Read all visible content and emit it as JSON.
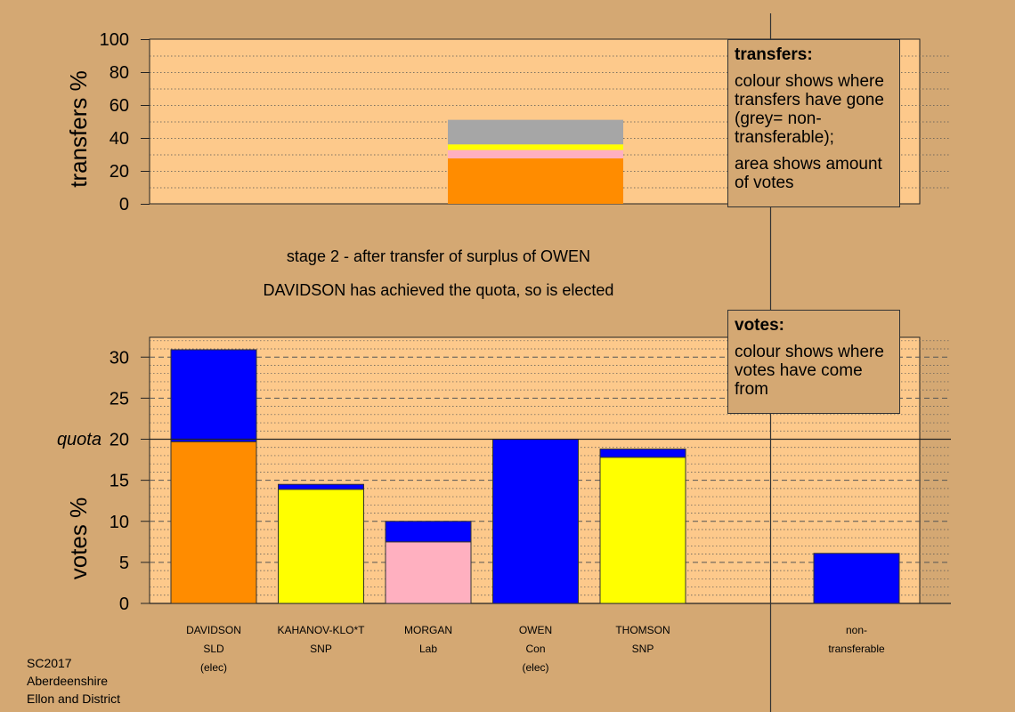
{
  "stage_caption": "stage 2 - after transfer of surplus of OWEN",
  "elected_caption": "DAVIDSON has achieved the quota, so is elected",
  "transfers_legend": {
    "title": "transfers:",
    "line1": "colour shows where transfers have gone (grey= non-transferable);",
    "line2": "area shows amount of votes"
  },
  "votes_legend": {
    "title": "votes:",
    "line1": "colour shows where votes have come from"
  },
  "footer": {
    "line1": "SC2017",
    "line2": "Aberdeenshire",
    "line3": "Ellon and District"
  },
  "colors": {
    "background": "#d4a873",
    "plot_bg": "#fdc98b",
    "orange": "#ff8c00",
    "yellow": "#ffff00",
    "pink": "#ffb0c0",
    "blue": "#0000ff",
    "grey": "#a6a6a6"
  },
  "chart_data": [
    {
      "type": "bar",
      "stacked": true,
      "ylabel": "transfers %",
      "ylim": [
        0,
        100
      ],
      "yticks": [
        "0",
        "20",
        "40",
        "60",
        "80",
        "100"
      ],
      "bar_position": "OWEN",
      "segments": [
        {
          "color": "#ff8c00",
          "value": 27.6
        },
        {
          "color": "#ffb0c0",
          "value": 5.1
        },
        {
          "color": "#ffff00",
          "value": 3.4
        },
        {
          "color": "#a6a6a6",
          "value": 14.9
        }
      ]
    },
    {
      "type": "bar",
      "stacked": true,
      "ylabel": "votes %",
      "ylim": [
        0,
        32
      ],
      "yticks": [
        "0",
        "5",
        "10",
        "15",
        "20",
        "25",
        "30"
      ],
      "quota_label": "quota",
      "quota_value": 20,
      "categories": [
        {
          "name": "DAVIDSON",
          "party": "SLD",
          "note": "(elec)",
          "segments": [
            {
              "color": "#ff8c00",
              "value": 19.7
            },
            {
              "color": "#0000ff",
              "value": 11.2
            }
          ]
        },
        {
          "name": "KAHANOV-KLO*T",
          "party": "SNP",
          "note": "",
          "segments": [
            {
              "color": "#ffff00",
              "value": 13.9
            },
            {
              "color": "#0000ff",
              "value": 0.6
            }
          ]
        },
        {
          "name": "MORGAN",
          "party": "Lab",
          "note": "",
          "segments": [
            {
              "color": "#ffb0c0",
              "value": 7.5
            },
            {
              "color": "#0000ff",
              "value": 2.5
            }
          ]
        },
        {
          "name": "OWEN",
          "party": "Con",
          "note": "(elec)",
          "segments": [
            {
              "color": "#0000ff",
              "value": 20.0
            }
          ]
        },
        {
          "name": "THOMSON",
          "party": "SNP",
          "note": "",
          "segments": [
            {
              "color": "#ffff00",
              "value": 17.8
            },
            {
              "color": "#0000ff",
              "value": 1.0
            }
          ]
        }
      ],
      "nontransferable": {
        "line1": "non-",
        "line2": "transferable",
        "segments": [
          {
            "color": "#0000ff",
            "value": 6.1
          }
        ]
      }
    }
  ]
}
